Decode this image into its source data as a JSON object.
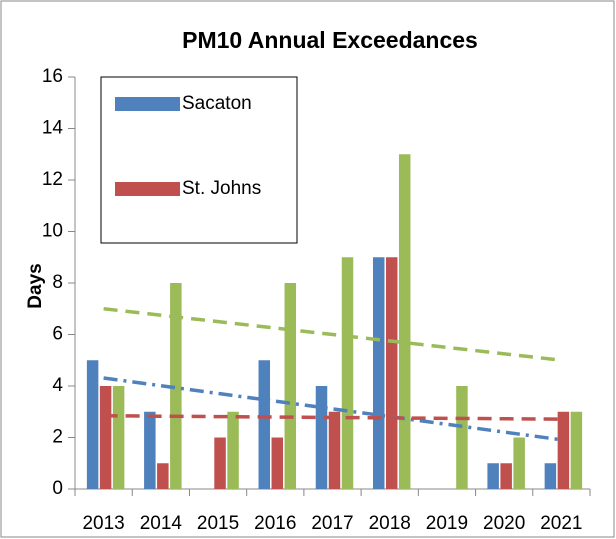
{
  "chart_data": {
    "type": "bar",
    "title": "PM10 Annual Exceedances",
    "y_label": "Days",
    "categories": [
      "2013",
      "2014",
      "2015",
      "2016",
      "2017",
      "2018",
      "2019",
      "2020",
      "2021"
    ],
    "series": [
      {
        "name": "Sacaton",
        "color": "#4f81bd",
        "values": [
          5,
          3,
          0,
          5,
          4,
          9,
          0,
          1,
          1
        ]
      },
      {
        "name": "St. Johns",
        "color": "#c0504d",
        "values": [
          4,
          1,
          2,
          2,
          3,
          9,
          0,
          1,
          3
        ]
      },
      {
        "color": "#9bbb59",
        "values": [
          4,
          8,
          3,
          8,
          9,
          13,
          4,
          2,
          3
        ]
      }
    ],
    "trendline": "linear",
    "ylim": [
      0,
      16
    ],
    "yticks": [
      0,
      2,
      4,
      6,
      8,
      10,
      12,
      14,
      16
    ],
    "grid": false
  }
}
